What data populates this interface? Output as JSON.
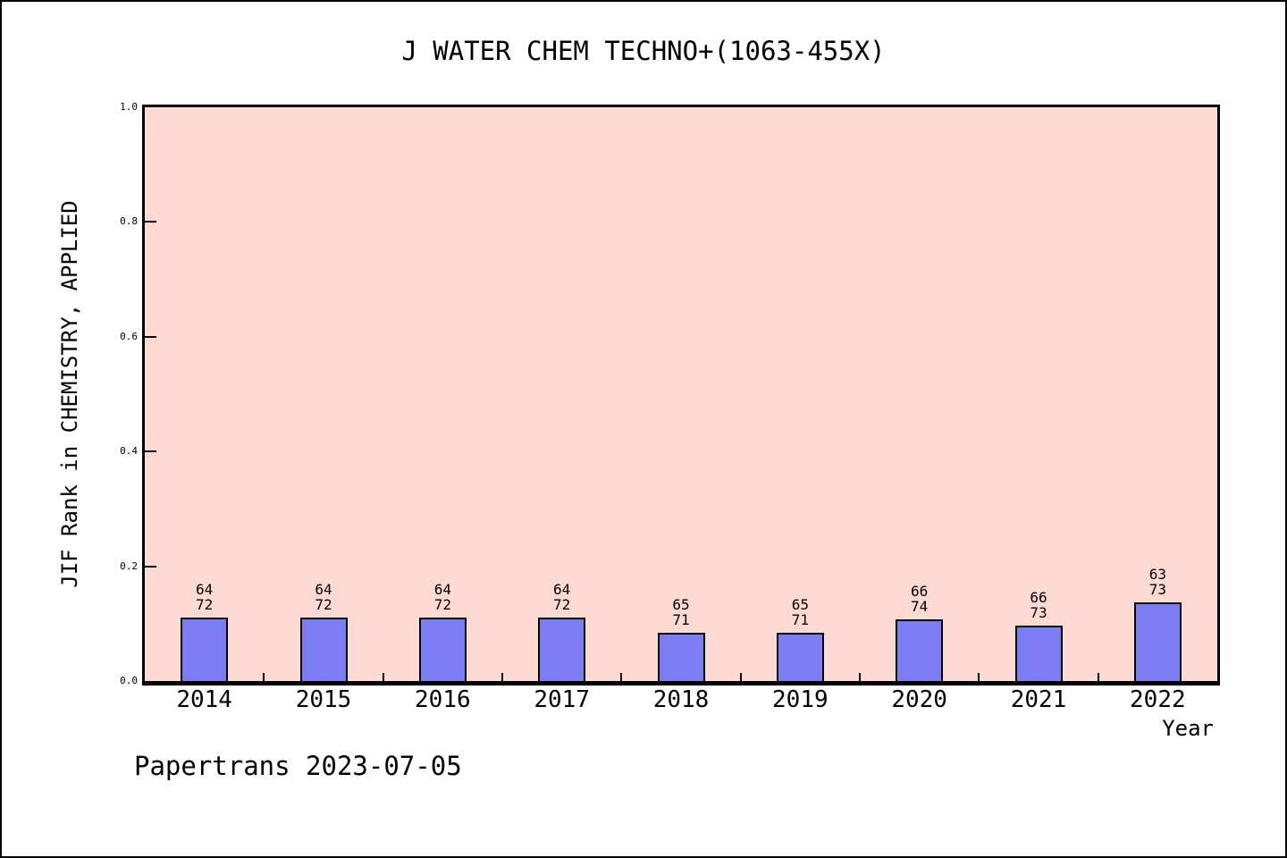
{
  "figure": {
    "footer": "Papertrans 2023-07-05"
  },
  "colors": {
    "bar_fill": "#7c7cf5",
    "bar_border": "#000000",
    "plot_bg": "#ffdad3",
    "frame": "#000000"
  },
  "chart_data": {
    "type": "bar",
    "title": "J WATER CHEM TECHNO+(1063-455X)",
    "xlabel": "Year",
    "ylabel": "JIF Rank in CHEMISTRY, APPLIED",
    "categories": [
      "2014",
      "2015",
      "2016",
      "2017",
      "2018",
      "2019",
      "2020",
      "2021",
      "2022"
    ],
    "values": [
      0.1111,
      0.1111,
      0.1111,
      0.1111,
      0.0845,
      0.0845,
      0.1081,
      0.0959,
      0.137
    ],
    "bar_labels": [
      {
        "rank": "64",
        "total": "72"
      },
      {
        "rank": "64",
        "total": "72"
      },
      {
        "rank": "64",
        "total": "72"
      },
      {
        "rank": "64",
        "total": "72"
      },
      {
        "rank": "65",
        "total": "71"
      },
      {
        "rank": "65",
        "total": "71"
      },
      {
        "rank": "66",
        "total": "74"
      },
      {
        "rank": "66",
        "total": "73"
      },
      {
        "rank": "63",
        "total": "73"
      }
    ],
    "ylim": [
      0,
      1
    ],
    "yticks": [
      "0.0",
      "0.2",
      "0.4",
      "0.6",
      "0.8",
      "1.0"
    ],
    "grid": "off",
    "legend": "none"
  }
}
